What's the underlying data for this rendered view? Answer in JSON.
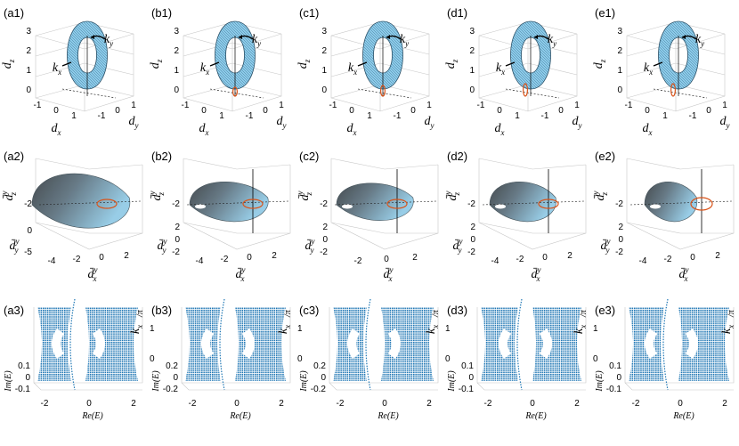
{
  "panels": {
    "row1": [
      "(a1)",
      "(b1)",
      "(c1)",
      "(d1)",
      "(e1)"
    ],
    "row2": [
      "(a2)",
      "(b2)",
      "(c2)",
      "(d2)",
      "(e2)"
    ],
    "row3": [
      "(a3)",
      "(b3)",
      "(c3)",
      "(d3)",
      "(e3)"
    ]
  },
  "row1_axes": {
    "z_ticks": [
      "0",
      "1",
      "2",
      "3"
    ],
    "x_ticks": [
      "-1",
      "0",
      "1"
    ],
    "y_ticks": [
      "-1",
      "0",
      "1"
    ],
    "z_label": "d",
    "z_sub": "z",
    "x_label": "d",
    "x_sub": "x",
    "y_label": "d",
    "y_sub": "y",
    "ky_label": "k",
    "ky_sub": "y",
    "kx_label": "k",
    "kx_sub": "x"
  },
  "row2_axes": {
    "z_label": "d̄",
    "z_sup": "y",
    "z_sub": "z",
    "z_tick": "-2",
    "y_label": "d̄",
    "y_sup": "y",
    "y_sub": "y",
    "x_label": "d̄",
    "x_sup": "y",
    "x_sub": "x",
    "y_ticks": [
      [
        "0",
        "-5"
      ],
      [
        "2",
        "0",
        "-2"
      ],
      [
        "2",
        "0",
        "-2"
      ],
      [
        "2",
        "0",
        "-2"
      ],
      [
        "2",
        "0",
        "-2"
      ]
    ],
    "x_ticks": [
      [
        "-4",
        "-2",
        "0",
        "2"
      ],
      [
        "-4",
        "-2",
        "0",
        "2"
      ],
      [
        "-2",
        "0",
        "2"
      ],
      [
        "-4",
        "-2",
        "0",
        "2"
      ],
      [
        "-4",
        "-2",
        "0",
        "2"
      ]
    ]
  },
  "row3_axes": {
    "k_ticks": [
      "0",
      "1"
    ],
    "k_label": "k",
    "k_sub": "x",
    "k_unit": "/π",
    "im_label": "Im(E)",
    "re_label": "Re(E)",
    "im_ticks": [
      [
        "0.1",
        "0",
        "-0.1"
      ],
      [
        "0.2",
        "0",
        "-0.2"
      ],
      [
        "0.2",
        "0",
        "-0.2"
      ],
      [
        "0.1",
        "0",
        "-0.1"
      ],
      [
        "0.1",
        "0",
        "-0.1"
      ]
    ],
    "re_ticks": [
      [
        "-2",
        "0",
        "2"
      ],
      [
        "-2",
        "0",
        "2"
      ],
      [
        "-2",
        "0",
        "2"
      ],
      [
        "-2",
        "0",
        "2"
      ],
      [
        "-2",
        "0",
        "2"
      ]
    ]
  },
  "colors": {
    "surface": "#7ec3e6",
    "surface_edge": "#2a4f66",
    "dark_surface": "#404548",
    "loop": "#d95319",
    "spectrum": "#1f77b4"
  }
}
